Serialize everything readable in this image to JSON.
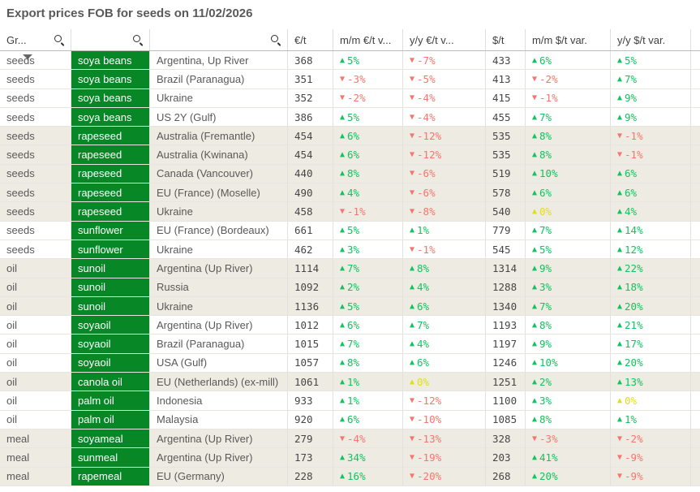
{
  "title": "Export prices FOB for seeds on 11/02/2026",
  "colors": {
    "positive": "#12c35f",
    "negative": "#f4766e",
    "zero": "#e0e016",
    "product_cell_green": "#078726",
    "band_beige": "#eeebe2",
    "number_text": "#464646",
    "label_text": "#595959",
    "header_text": "#404040",
    "title_text": "#595959"
  },
  "header": {
    "columns": [
      {
        "label": "Gr...",
        "search": true
      },
      {
        "label": "",
        "search": true
      },
      {
        "label": "",
        "search": true
      },
      {
        "label": "€/t",
        "search": false
      },
      {
        "label": "m/m €/t v...",
        "search": false
      },
      {
        "label": "y/y €/t v...",
        "search": false
      },
      {
        "label": "$/t",
        "search": false
      },
      {
        "label": "m/m $/t var.",
        "search": false
      },
      {
        "label": "y/y $/t var.",
        "search": false
      }
    ],
    "sort_indicator": "descending-triangle-on-first-column"
  },
  "rows": [
    {
      "group": "seeds",
      "product": "soya beans",
      "origin": "Argentina, Up River",
      "eur": 368,
      "mm_eur": 5,
      "yy_eur": -7,
      "usd": 433,
      "mm_usd": 6,
      "yy_usd": 5,
      "band": false
    },
    {
      "group": "seeds",
      "product": "soya beans",
      "origin": "Brazil (Paranagua)",
      "eur": 351,
      "mm_eur": -3,
      "yy_eur": -5,
      "usd": 413,
      "mm_usd": -2,
      "yy_usd": 7,
      "band": false
    },
    {
      "group": "seeds",
      "product": "soya beans",
      "origin": "Ukraine",
      "eur": 352,
      "mm_eur": -2,
      "yy_eur": -4,
      "usd": 415,
      "mm_usd": -1,
      "yy_usd": 9,
      "band": false
    },
    {
      "group": "seeds",
      "product": "soya beans",
      "origin": "US 2Y (Gulf)",
      "eur": 386,
      "mm_eur": 5,
      "yy_eur": -4,
      "usd": 455,
      "mm_usd": 7,
      "yy_usd": 9,
      "band": false
    },
    {
      "group": "seeds",
      "product": "rapeseed",
      "origin": "Australia (Fremantle)",
      "eur": 454,
      "mm_eur": 6,
      "yy_eur": -12,
      "usd": 535,
      "mm_usd": 8,
      "yy_usd": -1,
      "band": true
    },
    {
      "group": "seeds",
      "product": "rapeseed",
      "origin": "Australia (Kwinana)",
      "eur": 454,
      "mm_eur": 6,
      "yy_eur": -12,
      "usd": 535,
      "mm_usd": 8,
      "yy_usd": -1,
      "band": true
    },
    {
      "group": "seeds",
      "product": "rapeseed",
      "origin": "Canada (Vancouver)",
      "eur": 440,
      "mm_eur": 8,
      "yy_eur": -6,
      "usd": 519,
      "mm_usd": 10,
      "yy_usd": 6,
      "band": true
    },
    {
      "group": "seeds",
      "product": "rapeseed",
      "origin": "EU (France) (Moselle)",
      "eur": 490,
      "mm_eur": 4,
      "yy_eur": -6,
      "usd": 578,
      "mm_usd": 6,
      "yy_usd": 6,
      "band": true
    },
    {
      "group": "seeds",
      "product": "rapeseed",
      "origin": "Ukraine",
      "eur": 458,
      "mm_eur": -1,
      "yy_eur": -8,
      "usd": 540,
      "mm_usd": 0,
      "yy_usd": 4,
      "band": true
    },
    {
      "group": "seeds",
      "product": "sunflower",
      "origin": "EU (France) (Bordeaux)",
      "eur": 661,
      "mm_eur": 5,
      "yy_eur": 1,
      "usd": 779,
      "mm_usd": 7,
      "yy_usd": 14,
      "band": false
    },
    {
      "group": "seeds",
      "product": "sunflower",
      "origin": "Ukraine",
      "eur": 462,
      "mm_eur": 3,
      "yy_eur": -1,
      "usd": 545,
      "mm_usd": 5,
      "yy_usd": 12,
      "band": false
    },
    {
      "group": "oil",
      "product": "sunoil",
      "origin": "Argentina (Up River)",
      "eur": 1114,
      "mm_eur": 7,
      "yy_eur": 8,
      "usd": 1314,
      "mm_usd": 9,
      "yy_usd": 22,
      "band": true
    },
    {
      "group": "oil",
      "product": "sunoil",
      "origin": "Russia",
      "eur": 1092,
      "mm_eur": 2,
      "yy_eur": 4,
      "usd": 1288,
      "mm_usd": 3,
      "yy_usd": 18,
      "band": true
    },
    {
      "group": "oil",
      "product": "sunoil",
      "origin": "Ukraine",
      "eur": 1136,
      "mm_eur": 5,
      "yy_eur": 6,
      "usd": 1340,
      "mm_usd": 7,
      "yy_usd": 20,
      "band": true
    },
    {
      "group": "oil",
      "product": "soyaoil",
      "origin": "Argentina (Up River)",
      "eur": 1012,
      "mm_eur": 6,
      "yy_eur": 7,
      "usd": 1193,
      "mm_usd": 8,
      "yy_usd": 21,
      "band": false
    },
    {
      "group": "oil",
      "product": "soyaoil",
      "origin": "Brazil (Paranagua)",
      "eur": 1015,
      "mm_eur": 7,
      "yy_eur": 4,
      "usd": 1197,
      "mm_usd": 9,
      "yy_usd": 17,
      "band": false
    },
    {
      "group": "oil",
      "product": "soyaoil",
      "origin": "USA (Gulf)",
      "eur": 1057,
      "mm_eur": 8,
      "yy_eur": 6,
      "usd": 1246,
      "mm_usd": 10,
      "yy_usd": 20,
      "band": false
    },
    {
      "group": "oil",
      "product": "canola oil",
      "origin": "EU (Netherlands) (ex-mill)",
      "eur": 1061,
      "mm_eur": 1,
      "yy_eur": 0,
      "usd": 1251,
      "mm_usd": 2,
      "yy_usd": 13,
      "band": true
    },
    {
      "group": "oil",
      "product": "palm oil",
      "origin": "Indonesia",
      "eur": 933,
      "mm_eur": 1,
      "yy_eur": -12,
      "usd": 1100,
      "mm_usd": 3,
      "yy_usd": 0,
      "band": false
    },
    {
      "group": "oil",
      "product": "palm oil",
      "origin": "Malaysia",
      "eur": 920,
      "mm_eur": 6,
      "yy_eur": -10,
      "usd": 1085,
      "mm_usd": 8,
      "yy_usd": 1,
      "band": false
    },
    {
      "group": "meal",
      "product": "soyameal",
      "origin": "Argentina (Up River)",
      "eur": 279,
      "mm_eur": -4,
      "yy_eur": -13,
      "usd": 328,
      "mm_usd": -3,
      "yy_usd": -2,
      "band": true
    },
    {
      "group": "meal",
      "product": "sunmeal",
      "origin": "Argentina (Up River)",
      "eur": 173,
      "mm_eur": 34,
      "yy_eur": -19,
      "usd": 203,
      "mm_usd": 41,
      "yy_usd": -9,
      "band": true
    },
    {
      "group": "meal",
      "product": "rapemeal",
      "origin": "EU (Germany)",
      "eur": 228,
      "mm_eur": 16,
      "yy_eur": -20,
      "usd": 268,
      "mm_usd": 20,
      "yy_usd": -9,
      "band": true
    }
  ]
}
